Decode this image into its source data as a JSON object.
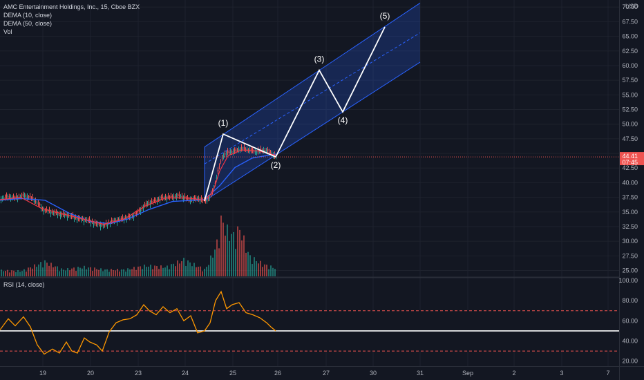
{
  "legend": {
    "title": "AMC Entertainment Holdings, Inc., 15, Cboe BZX",
    "dema10": "DEMA (10, close)",
    "dema50": "DEMA (50, close)",
    "vol": "Vol"
  },
  "rsi_label": "RSI (14, close)",
  "currency": "USD",
  "colors": {
    "background": "#131722",
    "up": "#26a69a",
    "down": "#ef5350",
    "dema10": "#f23645",
    "dema50": "#2962ff",
    "rsi": "#ff9800",
    "channel": "#2962ff",
    "wave": "#ffffff"
  },
  "price_tags": [
    "44.41",
    "07:45"
  ],
  "chart_data": [
    {
      "type": "candlestick",
      "x_ticks": [
        "19",
        "20",
        "23",
        "24",
        "25",
        "26",
        "27",
        "30",
        "31",
        "Sep",
        "2",
        "3",
        "7"
      ],
      "y_ticks": [
        "25.00",
        "27.50",
        "30.00",
        "32.50",
        "35.00",
        "37.50",
        "40.00",
        "42.50",
        "45.00",
        "47.50",
        "50.00",
        "52.50",
        "55.00",
        "57.50",
        "60.00",
        "62.50",
        "65.00",
        "67.50",
        "70.00"
      ],
      "ylim": [
        24.0,
        70.5
      ],
      "last_price": 44.41,
      "price_path": [
        {
          "t": 0,
          "p": 37.2
        },
        {
          "t": 10,
          "p": 37.6
        },
        {
          "t": 22,
          "p": 37.4
        },
        {
          "t": 34,
          "p": 37.8
        },
        {
          "t": 44,
          "p": 37.5
        },
        {
          "t": 52,
          "p": 36.8
        },
        {
          "t": 62,
          "p": 35.4
        },
        {
          "t": 74,
          "p": 35.0
        },
        {
          "t": 86,
          "p": 34.6
        },
        {
          "t": 100,
          "p": 34.4
        },
        {
          "t": 114,
          "p": 33.8
        },
        {
          "t": 126,
          "p": 33.6
        },
        {
          "t": 138,
          "p": 33.0
        },
        {
          "t": 150,
          "p": 32.7
        },
        {
          "t": 162,
          "p": 33.4
        },
        {
          "t": 176,
          "p": 33.8
        },
        {
          "t": 190,
          "p": 34.2
        },
        {
          "t": 200,
          "p": 35.0
        },
        {
          "t": 212,
          "p": 36.4
        },
        {
          "t": 222,
          "p": 36.8
        },
        {
          "t": 234,
          "p": 37.4
        },
        {
          "t": 248,
          "p": 37.6
        },
        {
          "t": 260,
          "p": 37.8
        },
        {
          "t": 274,
          "p": 37.1
        },
        {
          "t": 286,
          "p": 37.3
        },
        {
          "t": 296,
          "p": 36.9
        },
        {
          "t": 304,
          "p": 37.6
        },
        {
          "t": 310,
          "p": 39.4
        },
        {
          "t": 316,
          "p": 42.4
        },
        {
          "t": 322,
          "p": 44.6
        },
        {
          "t": 330,
          "p": 45.2
        },
        {
          "t": 340,
          "p": 45.4
        },
        {
          "t": 350,
          "p": 45.9
        },
        {
          "t": 360,
          "p": 45.6
        },
        {
          "t": 370,
          "p": 45.3
        },
        {
          "t": 382,
          "p": 45.6
        },
        {
          "t": 392,
          "p": 45.1
        },
        {
          "t": 399,
          "p": 44.4
        }
      ],
      "dema10": [
        {
          "t": 0,
          "p": 37.1
        },
        {
          "t": 30,
          "p": 37.5
        },
        {
          "t": 60,
          "p": 35.6
        },
        {
          "t": 90,
          "p": 34.7
        },
        {
          "t": 120,
          "p": 33.8
        },
        {
          "t": 150,
          "p": 32.9
        },
        {
          "t": 180,
          "p": 33.8
        },
        {
          "t": 210,
          "p": 36.0
        },
        {
          "t": 240,
          "p": 37.4
        },
        {
          "t": 270,
          "p": 37.4
        },
        {
          "t": 296,
          "p": 37.0
        },
        {
          "t": 308,
          "p": 38.4
        },
        {
          "t": 318,
          "p": 42.0
        },
        {
          "t": 330,
          "p": 44.6
        },
        {
          "t": 350,
          "p": 45.6
        },
        {
          "t": 375,
          "p": 45.4
        },
        {
          "t": 399,
          "p": 44.7
        }
      ],
      "dema50": [
        {
          "t": 0,
          "p": 37.0
        },
        {
          "t": 30,
          "p": 37.3
        },
        {
          "t": 65,
          "p": 37.0
        },
        {
          "t": 100,
          "p": 34.8
        },
        {
          "t": 130,
          "p": 33.4
        },
        {
          "t": 158,
          "p": 33.0
        },
        {
          "t": 185,
          "p": 33.8
        },
        {
          "t": 215,
          "p": 35.4
        },
        {
          "t": 250,
          "p": 36.8
        },
        {
          "t": 296,
          "p": 37.1
        },
        {
          "t": 318,
          "p": 39.5
        },
        {
          "t": 340,
          "p": 42.6
        },
        {
          "t": 365,
          "p": 44.2
        },
        {
          "t": 399,
          "p": 44.9
        }
      ],
      "volume": [
        {
          "t": 0,
          "v": 0.09
        },
        {
          "t": 30,
          "v": 0.08
        },
        {
          "t": 64,
          "v": 0.22
        },
        {
          "t": 90,
          "v": 0.1
        },
        {
          "t": 120,
          "v": 0.14
        },
        {
          "t": 150,
          "v": 0.1
        },
        {
          "t": 180,
          "v": 0.1
        },
        {
          "t": 210,
          "v": 0.16
        },
        {
          "t": 240,
          "v": 0.14
        },
        {
          "t": 265,
          "v": 0.25
        },
        {
          "t": 296,
          "v": 0.1
        },
        {
          "t": 312,
          "v": 0.45
        },
        {
          "t": 320,
          "v": 0.88
        },
        {
          "t": 326,
          "v": 0.7
        },
        {
          "t": 338,
          "v": 0.6
        },
        {
          "t": 346,
          "v": 0.72
        },
        {
          "t": 360,
          "v": 0.3
        },
        {
          "t": 380,
          "v": 0.18
        },
        {
          "t": 399,
          "v": 0.12
        }
      ],
      "channel": {
        "upper": [
          {
            "t": 296,
            "p": 46.1
          },
          {
            "t": 608,
            "p": 70.7
          }
        ],
        "middle": [
          {
            "t": 296,
            "p": 43.2
          },
          {
            "t": 608,
            "p": 65.6
          }
        ],
        "lower": [
          {
            "t": 296,
            "p": 36.9
          },
          {
            "t": 608,
            "p": 60.6
          }
        ]
      },
      "waves": [
        {
          "label": "(1)",
          "t": 323,
          "p": 48.3
        },
        {
          "label": "(2)",
          "t": 399,
          "p": 44.4
        },
        {
          "label": "(3)",
          "t": 462,
          "p": 59.2
        },
        {
          "label": "(4)",
          "t": 496,
          "p": 52.1
        },
        {
          "label": "(5)",
          "t": 557,
          "p": 66.6
        }
      ],
      "wave_start": {
        "t": 296,
        "p": 36.9
      }
    },
    {
      "type": "line",
      "title": "RSI (14, close)",
      "y_ticks": [
        "20.00",
        "40.00",
        "60.00",
        "80.00",
        "100.00"
      ],
      "ylim": [
        15,
        102
      ],
      "upper_band": 70,
      "middle_band": 50,
      "lower_band": 30,
      "rsi": [
        {
          "t": 0,
          "p": 51
        },
        {
          "t": 12,
          "p": 62
        },
        {
          "t": 22,
          "p": 55
        },
        {
          "t": 34,
          "p": 64
        },
        {
          "t": 44,
          "p": 54
        },
        {
          "t": 54,
          "p": 36
        },
        {
          "t": 64,
          "p": 27
        },
        {
          "t": 76,
          "p": 32
        },
        {
          "t": 86,
          "p": 28
        },
        {
          "t": 96,
          "p": 39
        },
        {
          "t": 104,
          "p": 30
        },
        {
          "t": 112,
          "p": 28
        },
        {
          "t": 122,
          "p": 43
        },
        {
          "t": 130,
          "p": 39
        },
        {
          "t": 140,
          "p": 36
        },
        {
          "t": 148,
          "p": 30
        },
        {
          "t": 158,
          "p": 49
        },
        {
          "t": 168,
          "p": 58
        },
        {
          "t": 178,
          "p": 61
        },
        {
          "t": 188,
          "p": 62
        },
        {
          "t": 198,
          "p": 66
        },
        {
          "t": 208,
          "p": 76
        },
        {
          "t": 216,
          "p": 70
        },
        {
          "t": 226,
          "p": 66
        },
        {
          "t": 236,
          "p": 74
        },
        {
          "t": 246,
          "p": 68
        },
        {
          "t": 256,
          "p": 72
        },
        {
          "t": 266,
          "p": 60
        },
        {
          "t": 276,
          "p": 65
        },
        {
          "t": 286,
          "p": 48
        },
        {
          "t": 296,
          "p": 50
        },
        {
          "t": 304,
          "p": 58
        },
        {
          "t": 312,
          "p": 80
        },
        {
          "t": 320,
          "p": 89
        },
        {
          "t": 328,
          "p": 72
        },
        {
          "t": 336,
          "p": 76
        },
        {
          "t": 346,
          "p": 78
        },
        {
          "t": 356,
          "p": 68
        },
        {
          "t": 366,
          "p": 66
        },
        {
          "t": 376,
          "p": 63
        },
        {
          "t": 386,
          "p": 58
        },
        {
          "t": 392,
          "p": 54
        },
        {
          "t": 399,
          "p": 50
        }
      ]
    }
  ]
}
